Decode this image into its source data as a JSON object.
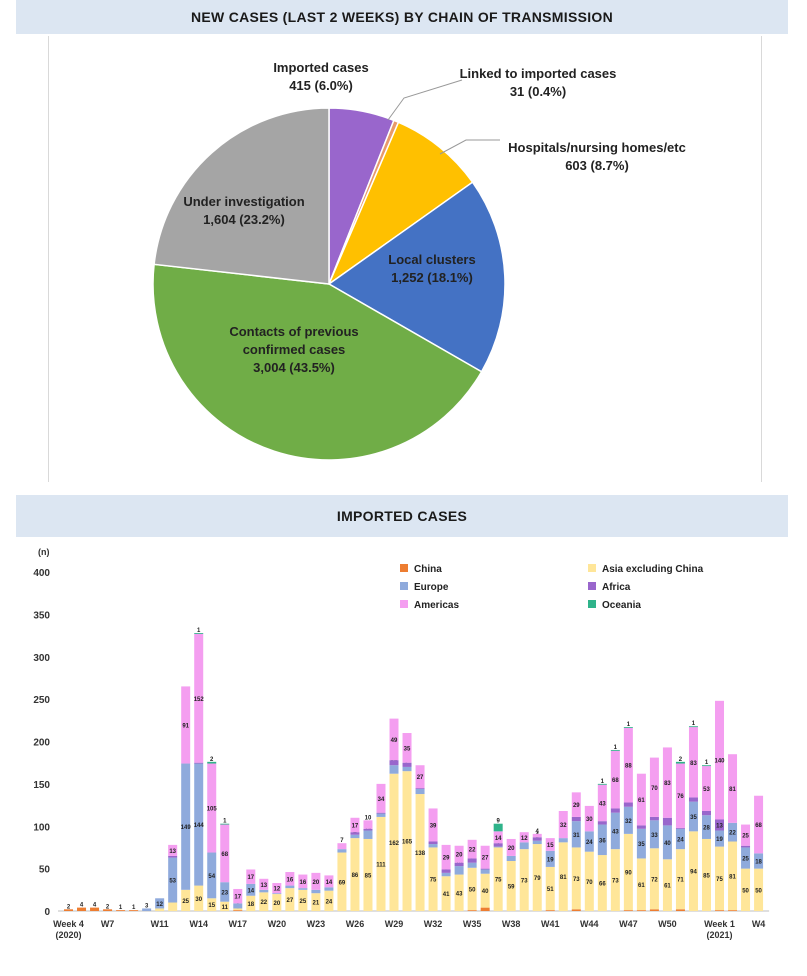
{
  "banners": {
    "pie_title": "NEW CASES (LAST 2 WEEKS) BY CHAIN OF TRANSMISSION",
    "bar_title": "IMPORTED CASES"
  },
  "chart_data": [
    {
      "type": "pie",
      "title": "NEW CASES (LAST 2 WEEKS) BY CHAIN OF TRANSMISSION",
      "start": "top, clockwise",
      "slices": [
        {
          "name": "Imported cases",
          "value": 415,
          "label": "415  (6.0%)",
          "color": "#9966cc"
        },
        {
          "name": "Linked to imported cases",
          "value": 31,
          "label": "31  (0.4%)",
          "color": "#e89a6a"
        },
        {
          "name": "Hospitals/nursing homes/etc",
          "value": 603,
          "label": "603  (8.7%)",
          "color": "#ffc000"
        },
        {
          "name": "Local clusters",
          "value": 1252,
          "label": "1,252  (18.1%)",
          "color": "#4472c4"
        },
        {
          "name": "Contacts of previous confirmed cases",
          "value": 3004,
          "label": "3,004  (43.5%)",
          "color": "#70ad47"
        },
        {
          "name": "Under investigation",
          "value": 1604,
          "label": "1,604  (23.2%)",
          "color": "#a5a5a5"
        }
      ],
      "label_lines": {
        "Imported cases": [
          "Imported cases",
          "415  (6.0%)"
        ],
        "Linked to imported cases": [
          "Linked to imported cases",
          "31  (0.4%)"
        ],
        "Hospitals/nursing homes/etc": [
          "Hospitals/nursing homes/etc",
          "603  (8.7%)"
        ],
        "Local clusters": [
          "Local clusters",
          "1,252  (18.1%)"
        ],
        "Contacts of previous confirmed cases": [
          "Contacts of previous",
          "confirmed cases",
          "3,004  (43.5%)"
        ],
        "Under investigation": [
          "Under investigation",
          "1,604  (23.2%)"
        ]
      }
    },
    {
      "type": "bar",
      "stacked": true,
      "title": "IMPORTED CASES",
      "ylabel": "(n)",
      "ylim": [
        0,
        400
      ],
      "yticks": [
        0,
        50,
        100,
        150,
        200,
        250,
        300,
        350,
        400
      ],
      "grid": false,
      "legend_position": "top-right",
      "categories": [
        "Week 4 (2020)",
        "W5",
        "W6",
        "W7",
        "W8",
        "W9",
        "W10",
        "W11",
        "W12",
        "W13",
        "W14",
        "W15",
        "W16",
        "W17",
        "W18",
        "W19",
        "W20",
        "W21",
        "W22",
        "W23",
        "W24",
        "W25",
        "W26",
        "W27",
        "W28",
        "W29",
        "W30",
        "W31",
        "W32",
        "W33",
        "W34",
        "W35",
        "W36",
        "W37",
        "W38",
        "W39",
        "W40",
        "W41",
        "W42",
        "W43",
        "W44",
        "W45",
        "W46",
        "W47",
        "W48",
        "W49",
        "W50",
        "W51",
        "W52",
        "W53",
        "Week 1 (2021)",
        "W2",
        "W3",
        "W4"
      ],
      "x_tick_labels": [
        {
          "index": 0,
          "lines": [
            "Week 4",
            "(2020)"
          ]
        },
        {
          "index": 3,
          "lines": [
            "W7"
          ]
        },
        {
          "index": 7,
          "lines": [
            "W11"
          ]
        },
        {
          "index": 10,
          "lines": [
            "W14"
          ]
        },
        {
          "index": 13,
          "lines": [
            "W17"
          ]
        },
        {
          "index": 16,
          "lines": [
            "W20"
          ]
        },
        {
          "index": 19,
          "lines": [
            "W23"
          ]
        },
        {
          "index": 22,
          "lines": [
            "W26"
          ]
        },
        {
          "index": 25,
          "lines": [
            "W29"
          ]
        },
        {
          "index": 28,
          "lines": [
            "W32"
          ]
        },
        {
          "index": 31,
          "lines": [
            "W35"
          ]
        },
        {
          "index": 34,
          "lines": [
            "W38"
          ]
        },
        {
          "index": 37,
          "lines": [
            "W41"
          ]
        },
        {
          "index": 40,
          "lines": [
            "W44"
          ]
        },
        {
          "index": 43,
          "lines": [
            "W47"
          ]
        },
        {
          "index": 46,
          "lines": [
            "W50"
          ]
        },
        {
          "index": 50,
          "lines": [
            "Week 1",
            "(2021)"
          ]
        },
        {
          "index": 53,
          "lines": [
            "W4"
          ]
        }
      ],
      "series": [
        {
          "name": "China",
          "color": "#ed7d31",
          "values": [
            2,
            4,
            4,
            2,
            1,
            1,
            0,
            0,
            0,
            0,
            0,
            0,
            0,
            1,
            0,
            0,
            0,
            0,
            0,
            0,
            0,
            0,
            0,
            0,
            0,
            0,
            0,
            0,
            0,
            0,
            0,
            1,
            4,
            0,
            0,
            0,
            0,
            1,
            0,
            2,
            0,
            0,
            0,
            1,
            1,
            2,
            0,
            2,
            0,
            0,
            1,
            1,
            0,
            0
          ]
        },
        {
          "name": "Asia excluding China",
          "color": "#ffe699",
          "values": [
            0,
            0,
            0,
            0,
            0,
            0,
            0,
            3,
            10,
            25,
            30,
            15,
            11,
            2,
            18,
            22,
            20,
            27,
            25,
            21,
            24,
            69,
            86,
            85,
            111,
            162,
            165,
            138,
            75,
            41,
            43,
            50,
            40,
            75,
            59,
            73,
            79,
            51,
            81,
            73,
            70,
            66,
            73,
            90,
            61,
            72,
            61,
            71,
            94,
            85,
            75,
            81,
            50,
            50
          ]
        },
        {
          "name": "Europe",
          "color": "#8faadc",
          "values": [
            0,
            0,
            0,
            0,
            0,
            0,
            3,
            12,
            53,
            149,
            144,
            54,
            23,
            6,
            14,
            3,
            1,
            3,
            2,
            4,
            4,
            4,
            4,
            10,
            4,
            10,
            5,
            6,
            4,
            4,
            10,
            6,
            5,
            1,
            6,
            8,
            4,
            19,
            5,
            31,
            24,
            36,
            43,
            32,
            35,
            33,
            40,
            24,
            35,
            28,
            19,
            22,
            25,
            18
          ]
        },
        {
          "name": "Africa",
          "color": "#9966cc",
          "values": [
            0,
            0,
            0,
            0,
            0,
            0,
            0,
            0,
            2,
            0,
            1,
            0,
            0,
            0,
            0,
            0,
            0,
            0,
            0,
            0,
            0,
            0,
            3,
            2,
            1,
            6,
            5,
            1,
            3,
            4,
            4,
            5,
            1,
            4,
            0,
            0,
            4,
            0,
            0,
            5,
            0,
            4,
            5,
            5,
            4,
            4,
            9,
            1,
            5,
            5,
            13,
            0,
            2,
            0
          ]
        },
        {
          "name": "Americas",
          "color": "#f49ef0",
          "values": [
            0,
            0,
            0,
            0,
            0,
            0,
            0,
            0,
            13,
            91,
            152,
            105,
            68,
            17,
            17,
            13,
            12,
            16,
            16,
            20,
            14,
            7,
            17,
            10,
            34,
            49,
            35,
            27,
            39,
            29,
            20,
            22,
            27,
            14,
            20,
            12,
            4,
            15,
            32,
            29,
            30,
            43,
            68,
            88,
            61,
            70,
            83,
            76,
            83,
            53,
            140,
            81,
            25,
            68
          ]
        },
        {
          "name": "Oceania",
          "color": "#2fb38a",
          "values": [
            0,
            0,
            0,
            0,
            0,
            0,
            0,
            0,
            0,
            0,
            1,
            2,
            1,
            0,
            0,
            0,
            0,
            0,
            0,
            0,
            0,
            0,
            0,
            0,
            0,
            0,
            0,
            0,
            0,
            0,
            0,
            0,
            0,
            9,
            0,
            0,
            0,
            0,
            0,
            0,
            0,
            1,
            1,
            1,
            0,
            0,
            0,
            2,
            1,
            1,
            0,
            0,
            0,
            0
          ]
        }
      ]
    }
  ]
}
